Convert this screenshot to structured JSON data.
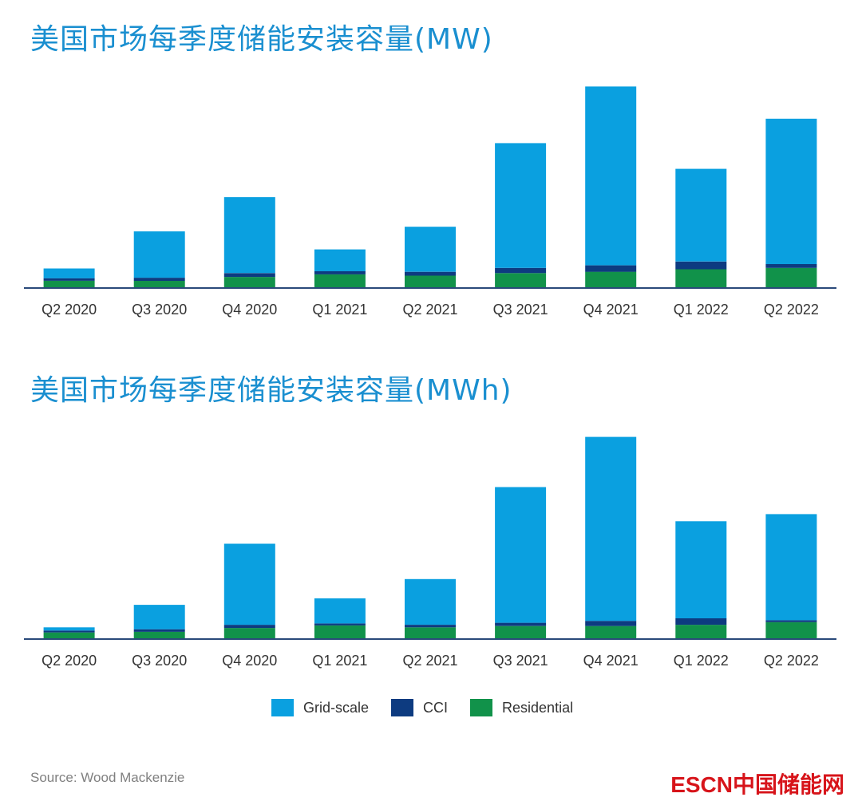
{
  "colors": {
    "grid_scale": "#0aa0e0",
    "cci": "#0d3b80",
    "residential": "#11924a",
    "axis": "#2a4a7a",
    "title": "#1a8fd0",
    "brand": "#d7141a"
  },
  "legend": [
    {
      "key": "grid_scale",
      "label": "Grid-scale"
    },
    {
      "key": "cci",
      "label": "CCI"
    },
    {
      "key": "residential",
      "label": "Residential"
    }
  ],
  "source": "Source: Wood Mackenzie",
  "brand": "ESCN中国储能网",
  "chart_data": [
    {
      "type": "bar",
      "stacked": true,
      "title": "美国市场每季度储能安装容量(MW)",
      "categories": [
        "Q2 2020",
        "Q3 2020",
        "Q4 2020",
        "Q1 2021",
        "Q2 2021",
        "Q3 2021",
        "Q4 2021",
        "Q1 2022",
        "Q2 2022"
      ],
      "series": [
        {
          "name": "Residential",
          "key": "residential",
          "values": [
            25,
            25,
            40,
            50,
            45,
            55,
            60,
            70,
            75
          ]
        },
        {
          "name": "CCI",
          "key": "cci",
          "values": [
            10,
            12,
            15,
            12,
            15,
            20,
            25,
            30,
            15
          ]
        },
        {
          "name": "Grid-scale",
          "key": "grid_scale",
          "values": [
            38,
            180,
            295,
            85,
            175,
            485,
            695,
            360,
            565
          ]
        }
      ],
      "ylim": [
        0,
        800
      ],
      "xlabel": "",
      "ylabel": ""
    },
    {
      "type": "bar",
      "stacked": true,
      "title": "美国市场每季度储能安装容量(MWh)",
      "categories": [
        "Q2 2020",
        "Q3 2020",
        "Q4 2020",
        "Q1 2021",
        "Q2 2021",
        "Q3 2021",
        "Q4 2021",
        "Q1 2022",
        "Q2 2022"
      ],
      "series": [
        {
          "name": "Residential",
          "key": "residential",
          "values": [
            45,
            50,
            80,
            100,
            85,
            95,
            95,
            105,
            125
          ]
        },
        {
          "name": "CCI",
          "key": "cci",
          "values": [
            15,
            20,
            25,
            15,
            20,
            25,
            40,
            50,
            15
          ]
        },
        {
          "name": "Grid-scale",
          "key": "grid_scale",
          "values": [
            25,
            190,
            630,
            195,
            355,
            1055,
            1430,
            755,
            825
          ]
        }
      ],
      "ylim": [
        0,
        1600
      ],
      "xlabel": "",
      "ylabel": ""
    }
  ]
}
